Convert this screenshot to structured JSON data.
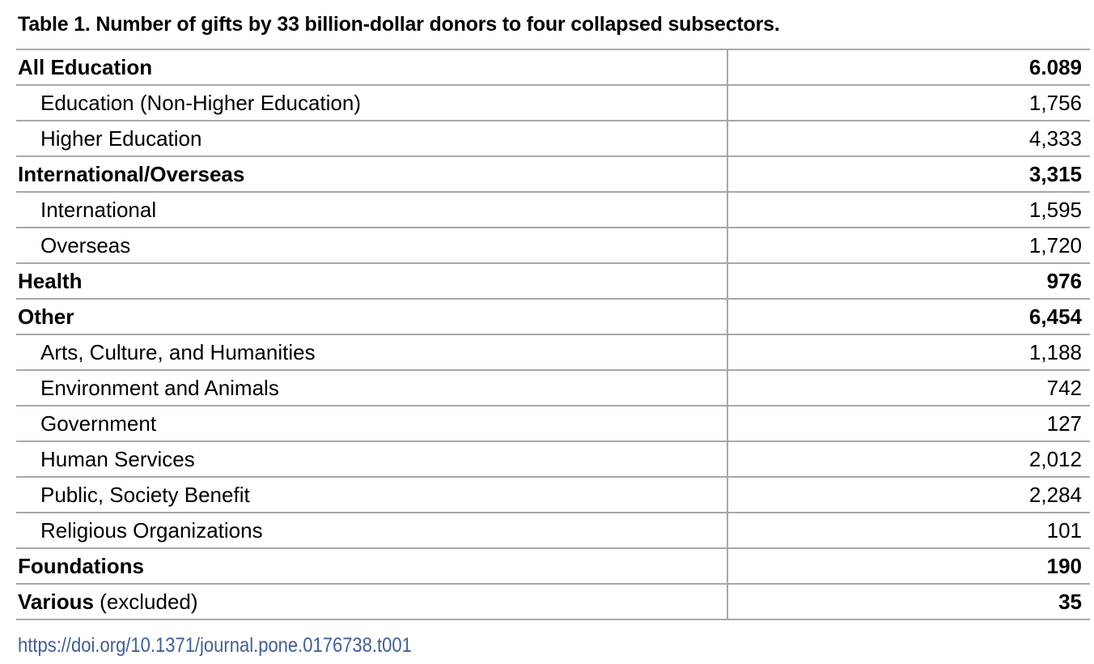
{
  "title": "Table 1.  Number of gifts by 33 billion-dollar donors to four collapsed subsectors.",
  "rows": [
    {
      "label": "All Education",
      "value": "6.089",
      "level": "main"
    },
    {
      "label": "Education (Non-Higher Education)",
      "value": "1,756",
      "level": "sub"
    },
    {
      "label": "Higher Education",
      "value": "4,333",
      "level": "sub"
    },
    {
      "label": "International/Overseas",
      "value": "3,315",
      "level": "main"
    },
    {
      "label": "International",
      "value": "1,595",
      "level": "sub"
    },
    {
      "label": "Overseas",
      "value": "1,720",
      "level": "sub"
    },
    {
      "label": "Health",
      "value": "976",
      "level": "main"
    },
    {
      "label": "Other",
      "value": "6,454",
      "level": "main"
    },
    {
      "label": "Arts, Culture, and Humanities",
      "value": "1,188",
      "level": "sub"
    },
    {
      "label": "Environment and Animals",
      "value": "742",
      "level": "sub"
    },
    {
      "label": "Government",
      "value": "127",
      "level": "sub"
    },
    {
      "label": "Human Services",
      "value": "2,012",
      "level": "sub"
    },
    {
      "label": "Public, Society Benefit",
      "value": "2,284",
      "level": "sub"
    },
    {
      "label": "Religious Organizations",
      "value": "101",
      "level": "sub"
    },
    {
      "label": "Foundations",
      "value": "190",
      "level": "main"
    },
    {
      "label": "Various",
      "note": " (excluded)",
      "value": "35",
      "level": "main"
    }
  ],
  "doi": "https://doi.org/10.1371/journal.pone.0176738.t001"
}
